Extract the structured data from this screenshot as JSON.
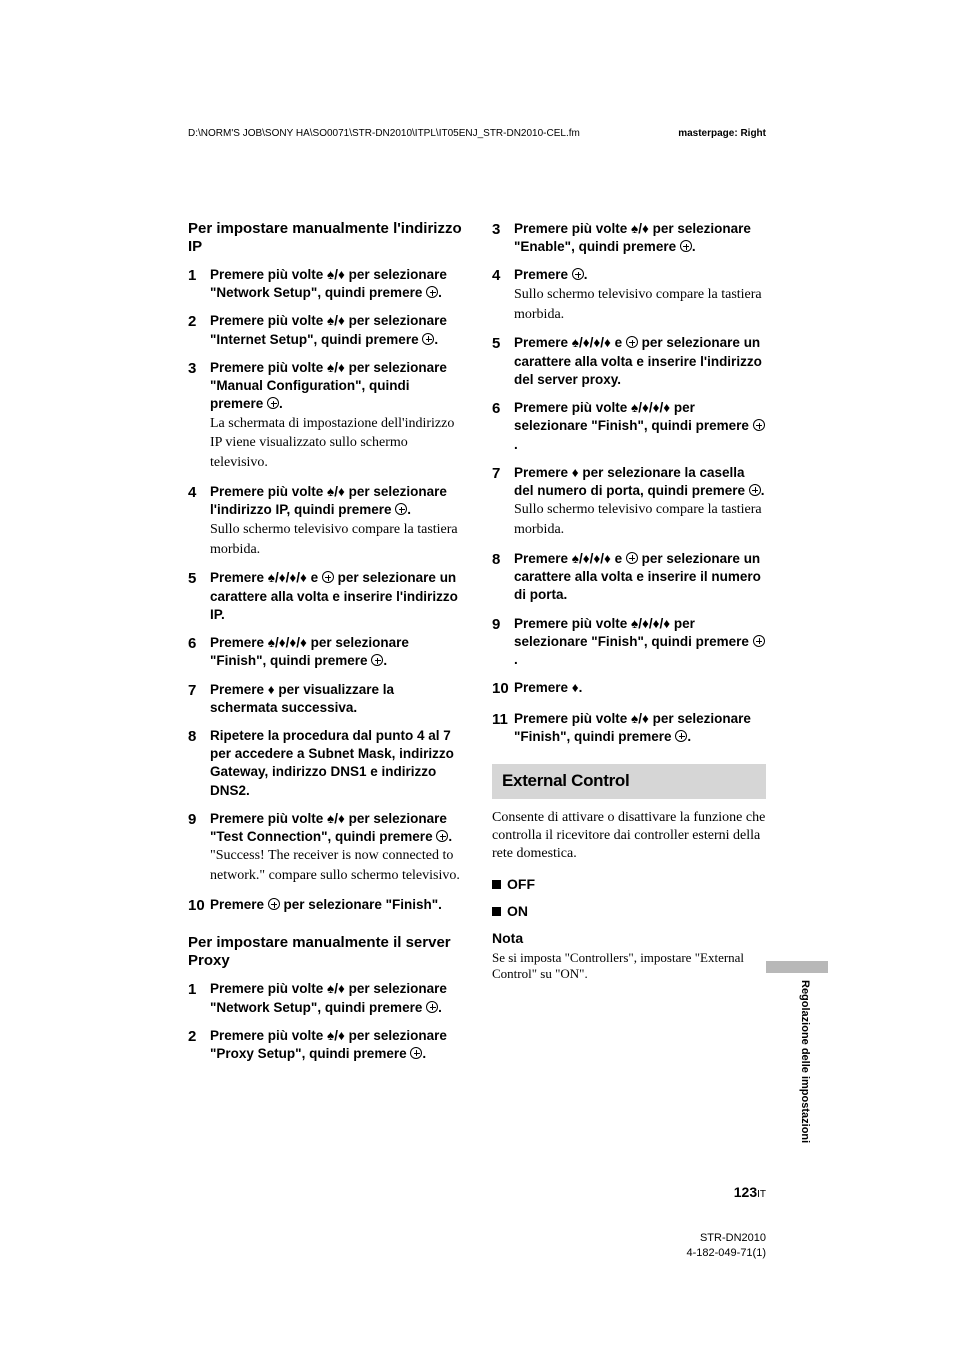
{
  "header": {
    "path": "D:\\NORM'S JOB\\SONY HA\\SO0071\\STR-DN2010\\ITPL\\IT05ENJ_STR-DN2010-CEL.fm",
    "masterpage": "masterpage: Right"
  },
  "left": {
    "title1": "Per impostare manualmente l'indirizzo IP",
    "s1": {
      "n": "1",
      "b": "Premere più volte ♠/♦ per selezionare \"Network Setup\", quindi premere ",
      "b2": "."
    },
    "s2": {
      "n": "2",
      "b": "Premere più volte ♠/♦ per selezionare \"Internet Setup\", quindi premere ",
      "b2": "."
    },
    "s3": {
      "n": "3",
      "b": "Premere più volte ♠/♦ per selezionare \"Manual Configuration\", quindi premere ",
      "b2": ".",
      "t": "La schermata di impostazione dell'indirizzo IP viene visualizzato sullo schermo televisivo."
    },
    "s4": {
      "n": "4",
      "b": "Premere più volte ♠/♦ per selezionare l'indirizzo IP, quindi premere ",
      "b2": ".",
      "t": "Sullo schermo televisivo compare la tastiera morbida."
    },
    "s5": {
      "n": "5",
      "b": "Premere ♠/♦/♦/♦ e ",
      "b2": " per selezionare un carattere alla volta e inserire l'indirizzo IP."
    },
    "s6": {
      "n": "6",
      "b": "Premere ♠/♦/♦/♦ per selezionare \"Finish\", quindi premere ",
      "b2": "."
    },
    "s7": {
      "n": "7",
      "b": "Premere ♦ per visualizzare la schermata successiva."
    },
    "s8": {
      "n": "8",
      "b": "Ripetere la procedura dal punto 4 al 7 per accedere a Subnet Mask, indirizzo Gateway, indirizzo DNS1 e indirizzo DNS2."
    },
    "s9": {
      "n": "9",
      "b": "Premere più volte ♠/♦ per selezionare \"Test Connection\", quindi premere ",
      "b2": ".",
      "t": "\"Success! The receiver is now connected to network.\" compare sullo schermo televisivo."
    },
    "s10": {
      "n": "10",
      "b": "Premere ",
      "b2": " per selezionare \"Finish\"."
    },
    "title2": "Per impostare manualmente il server Proxy",
    "p1": {
      "n": "1",
      "b": "Premere più volte ♠/♦ per selezionare \"Network Setup\", quindi premere ",
      "b2": "."
    },
    "p2": {
      "n": "2",
      "b": "Premere più volte ♠/♦ per selezionare \"Proxy Setup\", quindi premere ",
      "b2": "."
    }
  },
  "right": {
    "s3": {
      "n": "3",
      "b": "Premere più volte ♠/♦ per selezionare \"Enable\", quindi premere ",
      "b2": "."
    },
    "s4": {
      "n": "4",
      "b": "Premere ",
      "b2": ".",
      "t": "Sullo schermo televisivo compare la tastiera morbida."
    },
    "s5": {
      "n": "5",
      "b": "Premere ♠/♦/♦/♦ e ",
      "b2": " per selezionare un carattere alla volta e inserire l'indirizzo del server proxy."
    },
    "s6": {
      "n": "6",
      "b": "Premere più volte ♠/♦/♦/♦ per selezionare \"Finish\", quindi premere ",
      "b2": "."
    },
    "s7": {
      "n": "7",
      "b": "Premere ♦ per selezionare la casella del numero di porta, quindi premere ",
      "b2": ".",
      "t": "Sullo schermo televisivo compare la tastiera morbida."
    },
    "s8": {
      "n": "8",
      "b": "Premere ♠/♦/♦/♦ e ",
      "b2": " per selezionare un carattere alla volta e inserire il numero di porta."
    },
    "s9": {
      "n": "9",
      "b": "Premere più volte ♠/♦/♦/♦ per selezionare \"Finish\", quindi premere ",
      "b2": "."
    },
    "s10": {
      "n": "10",
      "b": "Premere ♦."
    },
    "s11": {
      "n": "11",
      "b": "Premere più volte ♠/♦ per selezionare \"Finish\", quindi premere ",
      "b2": "."
    },
    "boxTitle": "External Control",
    "boxDesc": "Consente di attivare o disattivare la funzione che controlla il ricevitore dai controller esterni della rete domestica.",
    "optOff": "OFF",
    "optOn": "ON",
    "notaTitle": "Nota",
    "notaBody": "Se si imposta \"Controllers\", impostare \"External Control\" su \"ON\"."
  },
  "sideTab": "Regolazione delle impostazioni",
  "pageNum": {
    "big": "123",
    "small": "IT"
  },
  "footer": {
    "l1": "STR-DN2010",
    "l2": "4-182-049-71(1)"
  }
}
